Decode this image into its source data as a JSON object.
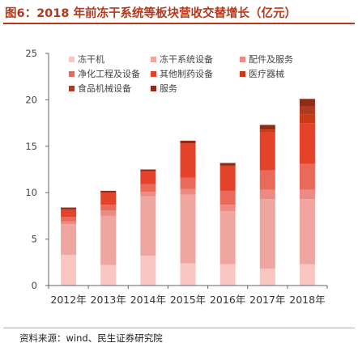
{
  "figure": {
    "title": "图6：2018 年前冻干系统等板块营收交替增长（亿元）",
    "source": "资料来源：wind、民生证券研究院"
  },
  "chart_data": {
    "type": "bar",
    "stacked": true,
    "categories": [
      "2012年",
      "2013年",
      "2014年",
      "2015年",
      "2016年",
      "2017年",
      "2018年"
    ],
    "ylim": [
      0,
      25
    ],
    "yticks": [
      0,
      5,
      10,
      15,
      20,
      25
    ],
    "grid": false,
    "legend_position": "top-left",
    "series": [
      {
        "name": "冻干机",
        "color": "#f9c6c2",
        "values": [
          3.3,
          2.2,
          3.2,
          2.4,
          2.3,
          1.8,
          2.3
        ]
      },
      {
        "name": "冻干系统设备",
        "color": "#f0a6a0",
        "values": [
          3.3,
          5.3,
          6.4,
          7.4,
          5.7,
          7.5,
          7.0
        ]
      },
      {
        "name": "配件及服务",
        "color": "#ec8b83",
        "values": [
          0.3,
          0.6,
          0.5,
          0.6,
          0.7,
          1.0,
          1.0
        ]
      },
      {
        "name": "净化工程及设备",
        "color": "#e9695a",
        "values": [
          0.5,
          0.6,
          0.8,
          1.2,
          1.5,
          2.1,
          2.8
        ]
      },
      {
        "name": "其他制药设备",
        "color": "#e4432a",
        "values": [
          0.8,
          1.3,
          1.4,
          3.7,
          2.7,
          4.1,
          4.4
        ]
      },
      {
        "name": "医疗器械",
        "color": "#c93b16",
        "values": [
          0.0,
          0.0,
          0.0,
          0.0,
          0.0,
          0.3,
          0.9
        ]
      },
      {
        "name": "食品机械设备",
        "color": "#b0391f",
        "values": [
          0.0,
          0.0,
          0.0,
          0.0,
          0.0,
          0.0,
          0.9
        ]
      },
      {
        "name": "服务",
        "color": "#8f2c18",
        "values": [
          0.2,
          0.2,
          0.2,
          0.3,
          0.3,
          0.5,
          0.8
        ]
      }
    ]
  }
}
